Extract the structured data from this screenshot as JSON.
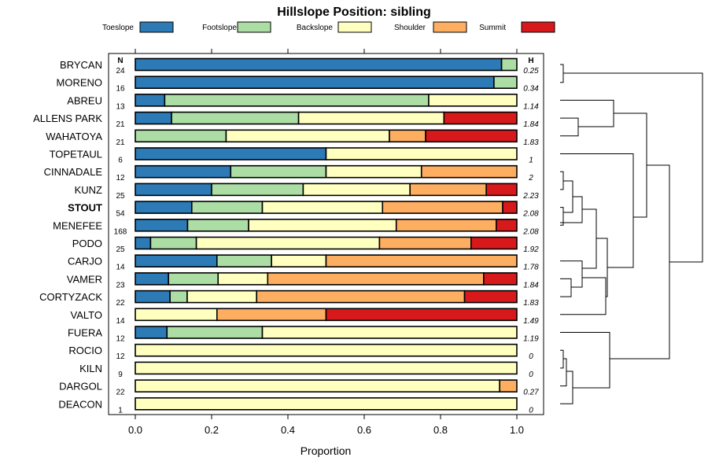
{
  "chart_data": {
    "type": "bar",
    "orientation": "horizontal",
    "stacked": true,
    "title": "Hillslope Position: sibling",
    "xlabel": "Proportion",
    "ylabel": "",
    "xlim": [
      0,
      1
    ],
    "xticks": [
      "0.0",
      "0.2",
      "0.4",
      "0.6",
      "0.8",
      "1.0"
    ],
    "n_header": "N",
    "h_header": "H",
    "legend": [
      {
        "name": "Toeslope",
        "color": "#2c7bb6"
      },
      {
        "name": "Footslope",
        "color": "#abdda4"
      },
      {
        "name": "Backslope",
        "color": "#ffffbf"
      },
      {
        "name": "Shoulder",
        "color": "#fdae61"
      },
      {
        "name": "Summit",
        "color": "#d7191c"
      }
    ],
    "rows": [
      {
        "label": "BRYCAN",
        "n": "24",
        "h": "0.25",
        "bold": false,
        "values": [
          0.96,
          0.04,
          0,
          0,
          0
        ]
      },
      {
        "label": "MORENO",
        "n": "16",
        "h": "0.34",
        "bold": false,
        "values": [
          0.94,
          0.06,
          0,
          0,
          0
        ]
      },
      {
        "label": "ABREU",
        "n": "13",
        "h": "1.14",
        "bold": false,
        "values": [
          0.077,
          0.692,
          0.231,
          0,
          0
        ]
      },
      {
        "label": "ALLENS PARK",
        "n": "21",
        "h": "1.84",
        "bold": false,
        "values": [
          0.095,
          0.333,
          0.381,
          0,
          0.191
        ]
      },
      {
        "label": "WAHATOYA",
        "n": "21",
        "h": "1.83",
        "bold": false,
        "values": [
          0,
          0.238,
          0.428,
          0.095,
          0.239
        ]
      },
      {
        "label": "TOPETAUL",
        "n": "6",
        "h": "1",
        "bold": false,
        "values": [
          0.5,
          0,
          0.5,
          0,
          0
        ]
      },
      {
        "label": "CINNADALE",
        "n": "12",
        "h": "2",
        "bold": false,
        "values": [
          0.25,
          0.25,
          0.25,
          0.25,
          0
        ]
      },
      {
        "label": "KUNZ",
        "n": "25",
        "h": "2.23",
        "bold": false,
        "values": [
          0.2,
          0.24,
          0.28,
          0.2,
          0.08
        ]
      },
      {
        "label": "STOUT",
        "n": "54",
        "h": "2.08",
        "bold": true,
        "values": [
          0.148,
          0.185,
          0.315,
          0.315,
          0.037
        ]
      },
      {
        "label": "MENEFEE",
        "n": "168",
        "h": "2.08",
        "bold": false,
        "values": [
          0.137,
          0.16,
          0.387,
          0.262,
          0.054
        ]
      },
      {
        "label": "PODO",
        "n": "25",
        "h": "1.92",
        "bold": false,
        "values": [
          0.04,
          0.12,
          0.48,
          0.24,
          0.12
        ]
      },
      {
        "label": "CARJO",
        "n": "14",
        "h": "1.78",
        "bold": false,
        "values": [
          0.214,
          0.143,
          0.143,
          0.5,
          0
        ]
      },
      {
        "label": "VAMER",
        "n": "23",
        "h": "1.84",
        "bold": false,
        "values": [
          0.087,
          0.13,
          0.13,
          0.566,
          0.087
        ]
      },
      {
        "label": "CORTYZACK",
        "n": "22",
        "h": "1.83",
        "bold": false,
        "values": [
          0.091,
          0.045,
          0.182,
          0.545,
          0.137
        ]
      },
      {
        "label": "VALTO",
        "n": "14",
        "h": "1.49",
        "bold": false,
        "values": [
          0,
          0,
          0.214,
          0.286,
          0.5
        ]
      },
      {
        "label": "FUERA",
        "n": "12",
        "h": "1.19",
        "bold": false,
        "values": [
          0.083,
          0.25,
          0.667,
          0,
          0
        ]
      },
      {
        "label": "ROCIO",
        "n": "12",
        "h": "0",
        "bold": false,
        "values": [
          0,
          0,
          1,
          0,
          0
        ]
      },
      {
        "label": "KILN",
        "n": "9",
        "h": "0",
        "bold": false,
        "values": [
          0,
          0,
          1,
          0,
          0
        ]
      },
      {
        "label": "DARGOL",
        "n": "22",
        "h": "0.27",
        "bold": false,
        "values": [
          0,
          0,
          0.955,
          0.045,
          0
        ]
      },
      {
        "label": "DEACON",
        "n": "1",
        "h": "0",
        "bold": false,
        "values": [
          0,
          0,
          1,
          0,
          0
        ]
      }
    ]
  }
}
